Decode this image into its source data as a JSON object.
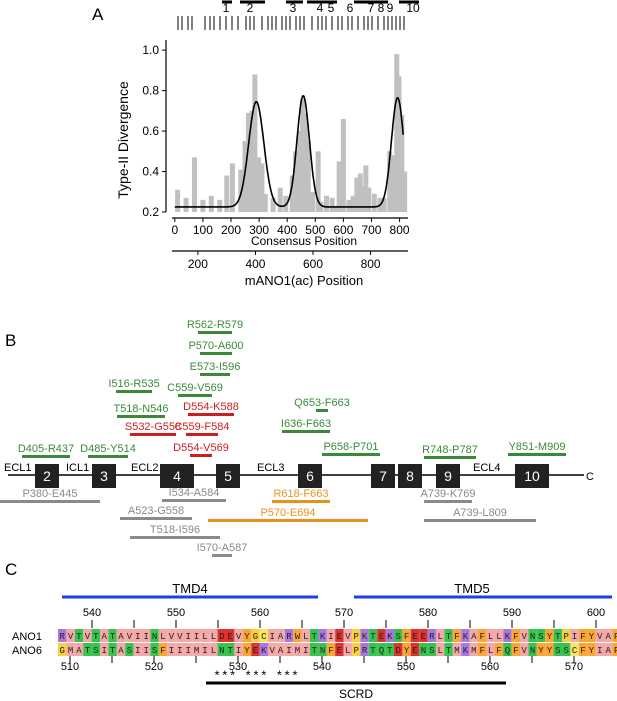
{
  "panel_labels": {
    "a": "A",
    "b": "B",
    "c": "C"
  },
  "panelA": {
    "chart_data": {
      "type": "bar",
      "ylabel": "Type-II Divergence",
      "xlabel": "Consensus Position",
      "xlabel2": "mANO1(ac) Position",
      "yticks": [
        "0.2",
        "0.4",
        "0.6",
        "0.8",
        "1.0"
      ],
      "xticks": [
        "0",
        "100",
        "200",
        "300",
        "400",
        "500",
        "600",
        "700",
        "800"
      ],
      "x2ticks": [
        "200",
        "400",
        "600",
        "800"
      ],
      "ylim": [
        0.2,
        1.05
      ],
      "xlim": [
        -10,
        830
      ],
      "segment_numbers": [
        "1",
        "2",
        "3",
        "4",
        "5",
        "6",
        "7",
        "8",
        "9",
        "10"
      ],
      "bars": [
        {
          "x": 10,
          "y": 0.31
        },
        {
          "x": 40,
          "y": 0.27
        },
        {
          "x": 70,
          "y": 0.47
        },
        {
          "x": 100,
          "y": 0.26
        },
        {
          "x": 130,
          "y": 0.28
        },
        {
          "x": 160,
          "y": 0.26
        },
        {
          "x": 185,
          "y": 0.38
        },
        {
          "x": 205,
          "y": 0.44
        },
        {
          "x": 235,
          "y": 0.41
        },
        {
          "x": 250,
          "y": 0.55
        },
        {
          "x": 262,
          "y": 0.69
        },
        {
          "x": 275,
          "y": 0.7
        },
        {
          "x": 285,
          "y": 0.88
        },
        {
          "x": 298,
          "y": 0.47
        },
        {
          "x": 310,
          "y": 0.44
        },
        {
          "x": 322,
          "y": 0.29
        },
        {
          "x": 350,
          "y": 0.27
        },
        {
          "x": 375,
          "y": 0.32
        },
        {
          "x": 395,
          "y": 0.28
        },
        {
          "x": 418,
          "y": 0.38
        },
        {
          "x": 430,
          "y": 0.5
        },
        {
          "x": 445,
          "y": 0.6
        },
        {
          "x": 455,
          "y": 0.76
        },
        {
          "x": 465,
          "y": 0.69
        },
        {
          "x": 475,
          "y": 0.55
        },
        {
          "x": 490,
          "y": 0.3
        },
        {
          "x": 510,
          "y": 0.5
        },
        {
          "x": 520,
          "y": 0.25
        },
        {
          "x": 540,
          "y": 0.28
        },
        {
          "x": 560,
          "y": 0.27
        },
        {
          "x": 575,
          "y": 0.23
        },
        {
          "x": 585,
          "y": 0.45
        },
        {
          "x": 600,
          "y": 0.66
        },
        {
          "x": 620,
          "y": 0.26
        },
        {
          "x": 635,
          "y": 0.28
        },
        {
          "x": 648,
          "y": 0.37
        },
        {
          "x": 660,
          "y": 0.39
        },
        {
          "x": 670,
          "y": 0.33
        },
        {
          "x": 680,
          "y": 0.43
        },
        {
          "x": 690,
          "y": 0.32
        },
        {
          "x": 710,
          "y": 0.29
        },
        {
          "x": 730,
          "y": 0.27
        },
        {
          "x": 745,
          "y": 0.27
        },
        {
          "x": 765,
          "y": 0.5
        },
        {
          "x": 778,
          "y": 0.48
        },
        {
          "x": 790,
          "y": 0.98
        },
        {
          "x": 798,
          "y": 0.87
        },
        {
          "x": 808,
          "y": 0.68
        },
        {
          "x": 818,
          "y": 0.4
        }
      ],
      "fit_curve": {
        "baseline": 0.225,
        "peaks": [
          {
            "center": 290,
            "amplitude": 0.52,
            "sigma": 27
          },
          {
            "center": 457,
            "amplitude": 0.55,
            "sigma": 22
          },
          {
            "center": 793,
            "amplitude": 0.54,
            "sigma": 22
          }
        ]
      },
      "colors": {
        "bars": "#c0c0c0",
        "curve": "#000000"
      }
    }
  },
  "panelB": {
    "topology_labels": [
      "ECL1",
      "ICL1",
      "ECL2",
      "ECL3",
      "ECL4",
      "C"
    ],
    "helices": [
      "2",
      "3",
      "4",
      "5",
      "6",
      "7",
      "8",
      "9",
      "10"
    ],
    "green_segments": [
      "R562-R579",
      "P570-A600",
      "E573-I596",
      "I516-R535",
      "C559-V569",
      "T518-N546",
      "Q653-F663",
      "I636-F663",
      "D405-R437",
      "D485-Y514",
      "P658-P701",
      "R748-P787",
      "Y851-M909"
    ],
    "red_segments": [
      "D554-K588",
      "S532-G558",
      "C559-F584",
      "D554-V569"
    ],
    "orange_segments": [
      "R618-F663",
      "P570-E694"
    ],
    "gray_segments": [
      "P380-E445",
      "I534-A584",
      "A523-G558",
      "T518-I596",
      "I570-A587",
      "A739-K769",
      "A739-L809"
    ],
    "colors": {
      "green": "#3a8a3a",
      "red": "#cc1f1f",
      "orange": "#e8921e",
      "gray": "#8a8a8a"
    }
  },
  "panelC": {
    "tmd_labels": [
      "TMD4",
      "TMD5"
    ],
    "seq_names": [
      "ANO1",
      "ANO6"
    ],
    "ano1": "RVTVTATAVIINLVVIILLDEVYGCIARWLTKIEVPKTEKSFEERLTFKAFLLKFVNSYTPIFYVAF",
    "ano6": "GMATSITASIISFIIIMILNTIYEKVAIMITNFELPRTQTDYENSLTMKMFLFQFVNYYSSCFYIAF",
    "top_ticks": [
      "540",
      "550",
      "560",
      "570",
      "580",
      "590",
      "600"
    ],
    "bottom_ticks": [
      "510",
      "520",
      "530",
      "540",
      "550",
      "560",
      "570"
    ],
    "stars": "*** *** ***",
    "scrd_label": "SCRD"
  }
}
